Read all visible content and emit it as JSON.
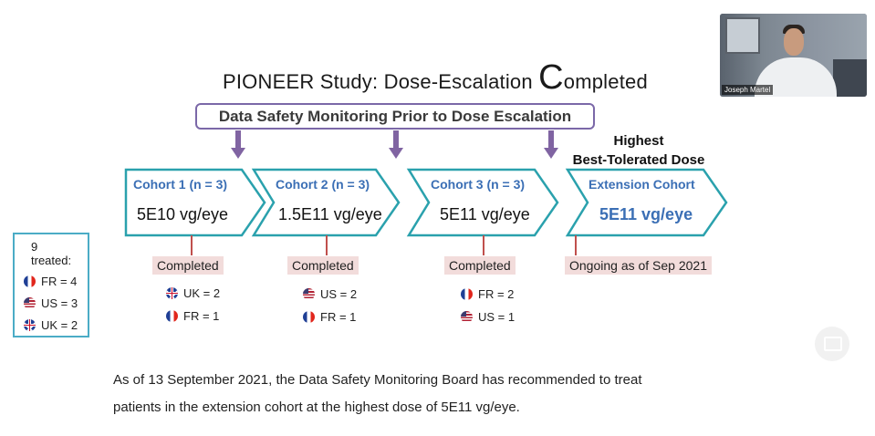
{
  "title": {
    "prefix": "PIONEER Study: Dose-Escalation ",
    "big_letter": "C",
    "suffix": "ompleted"
  },
  "dsmb_label": "Data Safety Monitoring Prior to Dose Escalation",
  "highest_label": {
    "line1": "Highest",
    "line2": "Best-Tolerated Dose"
  },
  "cohorts": [
    {
      "label": "Cohort 1 (n = 3)",
      "dose": "5E10 vg/eye",
      "status": "Completed",
      "flags": [
        {
          "icon": "uk-flag-icon",
          "text": "UK = 2"
        },
        {
          "icon": "fr-flag-icon",
          "text": "FR = 1"
        }
      ]
    },
    {
      "label": "Cohort 2 (n = 3)",
      "dose": "1.5E11 vg/eye",
      "status": "Completed",
      "flags": [
        {
          "icon": "us-flag-icon",
          "text": "US = 2"
        },
        {
          "icon": "fr-flag-icon",
          "text": "FR = 1"
        }
      ]
    },
    {
      "label": "Cohort 3 (n = 3)",
      "dose": "5E11 vg/eye",
      "status": "Completed",
      "flags": [
        {
          "icon": "fr-flag-icon",
          "text": "FR = 2"
        },
        {
          "icon": "us-flag-icon",
          "text": "US = 1"
        }
      ]
    },
    {
      "label": "Extension Cohort",
      "dose": "5E11 vg/eye",
      "status": "Ongoing as of Sep 2021",
      "flags": []
    }
  ],
  "treated": {
    "header": "9 treated:",
    "rows": [
      {
        "icon": "fr-flag-icon",
        "text": "FR = 4"
      },
      {
        "icon": "us-flag-icon",
        "text": "US = 3"
      },
      {
        "icon": "uk-flag-icon",
        "text": "UK = 2"
      }
    ]
  },
  "paragraph": {
    "line1": "As of 13 September 2021, the Data Safety Monitoring Board has recommended to treat",
    "line2": "patients in the extension cohort at the highest dose of 5E11 vg/eye."
  },
  "video": {
    "participant_name": "Joseph Martel"
  },
  "colors": {
    "chevron_border": "#2aa1ad",
    "arrow_purple": "#8064a2",
    "label_blue": "#3b6fb5",
    "status_fill": "#f2dcdb",
    "connector_red": "#c0504d"
  }
}
